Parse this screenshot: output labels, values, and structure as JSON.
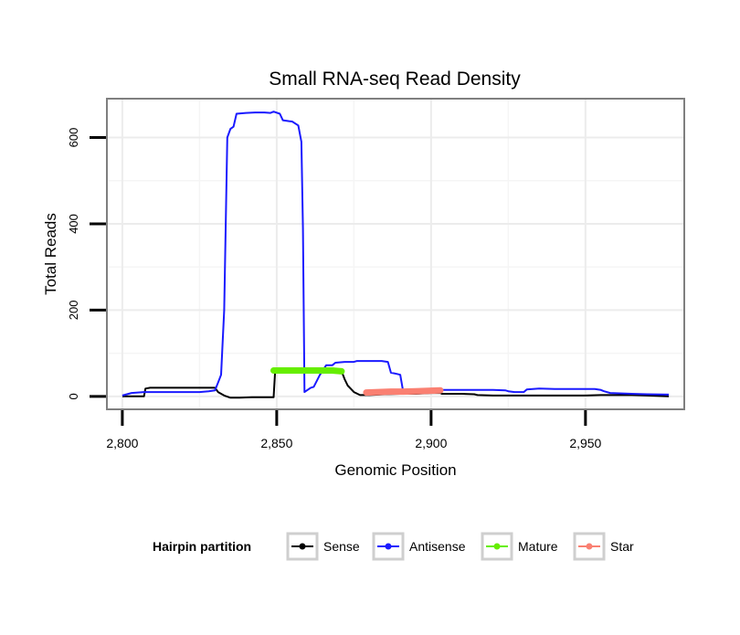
{
  "chart_data": {
    "type": "line",
    "title": "Small RNA-seq Read Density",
    "xlabel": "Genomic Position",
    "ylabel": "Total Reads",
    "xlim": [
      2795,
      2982
    ],
    "ylim": [
      -30,
      690
    ],
    "xticks": [
      2800,
      2850,
      2900,
      2950
    ],
    "xtick_labels": [
      "2,800",
      "2,850",
      "2,900",
      "2,950"
    ],
    "yticks": [
      0,
      200,
      400,
      600
    ],
    "ytick_labels": [
      "0",
      "200",
      "400",
      "600"
    ],
    "grid": true,
    "legend": {
      "title": "Hairpin partition",
      "position": "bottom",
      "entries": [
        "Sense",
        "Antisense",
        "Mature",
        "Star"
      ]
    },
    "series": [
      {
        "name": "Sense",
        "color": "#000000",
        "style": "line",
        "points": [
          [
            2800,
            0
          ],
          [
            2807,
            0
          ],
          [
            2807.5,
            18
          ],
          [
            2809,
            20
          ],
          [
            2813,
            20
          ],
          [
            2818,
            20
          ],
          [
            2822,
            20
          ],
          [
            2826,
            20
          ],
          [
            2830,
            20
          ],
          [
            2831,
            10
          ],
          [
            2833,
            2
          ],
          [
            2835,
            -3
          ],
          [
            2838,
            -3
          ],
          [
            2842,
            -2
          ],
          [
            2846,
            -2
          ],
          [
            2849,
            -2
          ],
          [
            2849.5,
            60
          ],
          [
            2852,
            60
          ],
          [
            2856,
            60
          ],
          [
            2860,
            60
          ],
          [
            2864,
            60
          ],
          [
            2868,
            60
          ],
          [
            2871,
            58
          ],
          [
            2872,
            40
          ],
          [
            2873,
            25
          ],
          [
            2875,
            10
          ],
          [
            2877,
            3
          ],
          [
            2880,
            3
          ],
          [
            2885,
            5
          ],
          [
            2890,
            6
          ],
          [
            2895,
            6
          ],
          [
            2900,
            8
          ],
          [
            2903,
            8
          ],
          [
            2903.5,
            6
          ],
          [
            2910,
            6
          ],
          [
            2914,
            5
          ],
          [
            2915,
            3
          ],
          [
            2920,
            2
          ],
          [
            2925,
            2
          ],
          [
            2930,
            2
          ],
          [
            2935,
            2
          ],
          [
            2940,
            2
          ],
          [
            2945,
            2
          ],
          [
            2950,
            2
          ],
          [
            2955,
            3
          ],
          [
            2960,
            3
          ],
          [
            2965,
            3
          ],
          [
            2970,
            2
          ],
          [
            2977,
            0
          ]
        ]
      },
      {
        "name": "Antisense",
        "color": "#1a1aff",
        "style": "line",
        "points": [
          [
            2800,
            2
          ],
          [
            2803,
            8
          ],
          [
            2807,
            10
          ],
          [
            2810,
            10
          ],
          [
            2815,
            10
          ],
          [
            2820,
            10
          ],
          [
            2825,
            10
          ],
          [
            2828,
            12
          ],
          [
            2830,
            14
          ],
          [
            2831,
            32
          ],
          [
            2832,
            50
          ],
          [
            2833,
            200
          ],
          [
            2834,
            600
          ],
          [
            2835,
            620
          ],
          [
            2836,
            625
          ],
          [
            2837,
            655
          ],
          [
            2840,
            657
          ],
          [
            2843,
            658
          ],
          [
            2846,
            658
          ],
          [
            2848,
            657
          ],
          [
            2849,
            660
          ],
          [
            2851,
            655
          ],
          [
            2852,
            640
          ],
          [
            2854,
            638
          ],
          [
            2855,
            637
          ],
          [
            2857,
            628
          ],
          [
            2858,
            590
          ],
          [
            2858.5,
            390
          ],
          [
            2859,
            10
          ],
          [
            2861,
            20
          ],
          [
            2862,
            22
          ],
          [
            2864,
            50
          ],
          [
            2866,
            72
          ],
          [
            2868,
            72
          ],
          [
            2869,
            78
          ],
          [
            2872,
            80
          ],
          [
            2875,
            80
          ],
          [
            2876,
            82
          ],
          [
            2880,
            82
          ],
          [
            2884,
            82
          ],
          [
            2886,
            80
          ],
          [
            2887,
            55
          ],
          [
            2889,
            52
          ],
          [
            2890,
            50
          ],
          [
            2891,
            10
          ],
          [
            2895,
            10
          ],
          [
            2900,
            12
          ],
          [
            2902,
            14
          ],
          [
            2904,
            15
          ],
          [
            2908,
            15
          ],
          [
            2912,
            15
          ],
          [
            2916,
            15
          ],
          [
            2920,
            15
          ],
          [
            2924,
            14
          ],
          [
            2925,
            12
          ],
          [
            2927,
            10
          ],
          [
            2928,
            10
          ],
          [
            2930,
            10
          ],
          [
            2931,
            16
          ],
          [
            2935,
            18
          ],
          [
            2940,
            17
          ],
          [
            2945,
            17
          ],
          [
            2950,
            17
          ],
          [
            2953,
            17
          ],
          [
            2955,
            15
          ],
          [
            2956,
            12
          ],
          [
            2958,
            8
          ],
          [
            2965,
            6
          ],
          [
            2970,
            5
          ],
          [
            2977,
            4
          ]
        ]
      },
      {
        "name": "Mature",
        "color": "#66ee00",
        "style": "thick",
        "points": [
          [
            2849,
            60
          ],
          [
            2852,
            60
          ],
          [
            2856,
            60
          ],
          [
            2860,
            60
          ],
          [
            2864,
            60
          ],
          [
            2868,
            60
          ],
          [
            2871,
            58
          ]
        ]
      },
      {
        "name": "Star",
        "color": "#fa8072",
        "style": "thick",
        "points": [
          [
            2879,
            9
          ],
          [
            2883,
            10
          ],
          [
            2887,
            11
          ],
          [
            2891,
            11
          ],
          [
            2895,
            12
          ],
          [
            2899,
            13
          ],
          [
            2903,
            14
          ]
        ]
      }
    ]
  }
}
